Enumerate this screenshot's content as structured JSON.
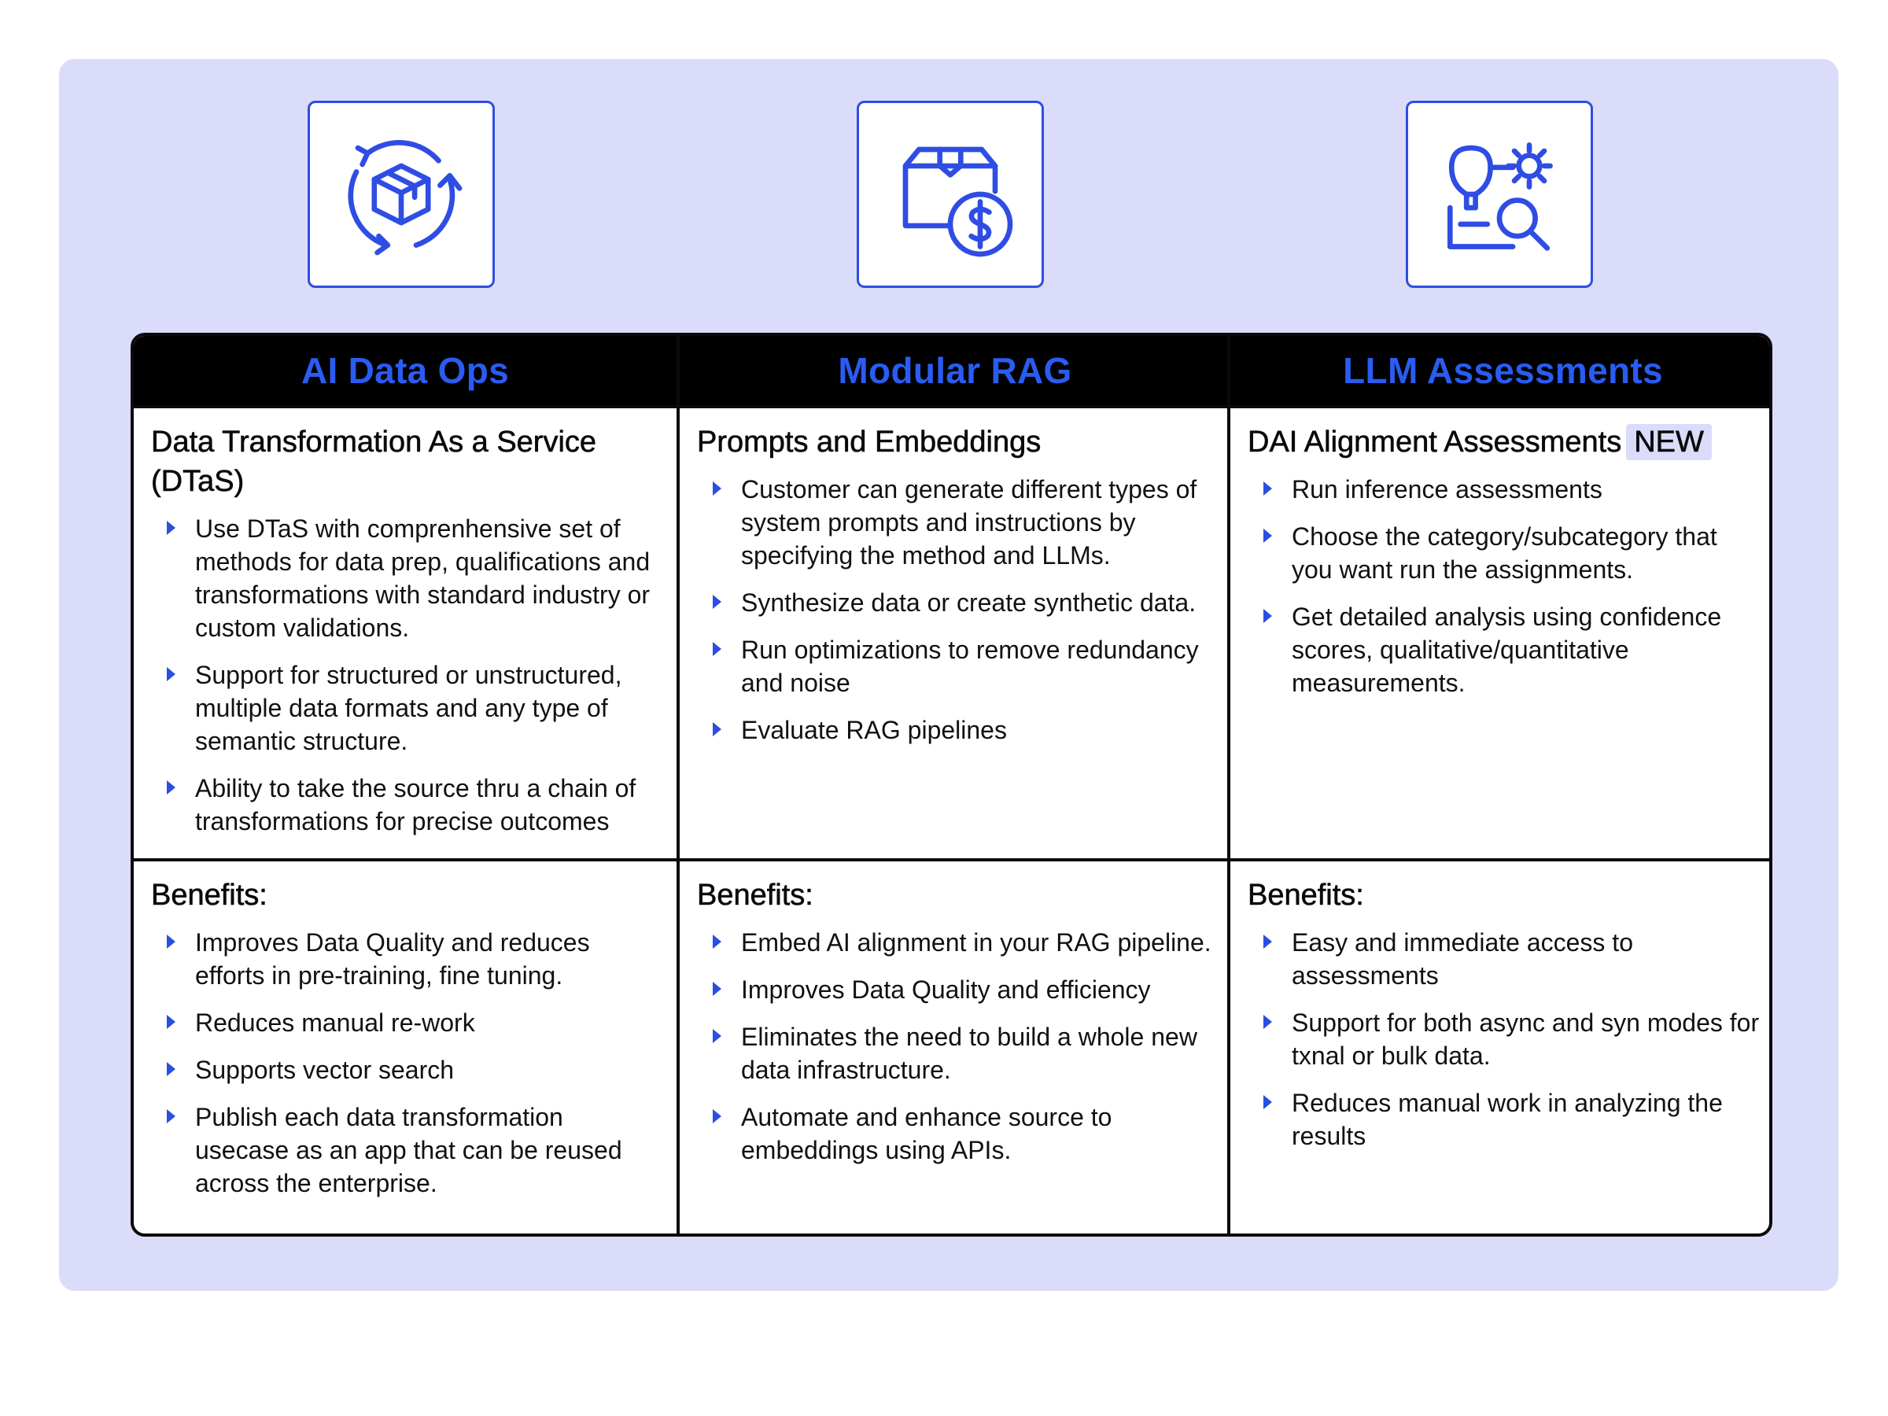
{
  "columns": [
    {
      "title": "AI Data Ops",
      "icon": "box-cycle-icon",
      "top_title": "Data Transformation As a Service (DTaS)",
      "top_badge": "",
      "top_items": [
        "Use DTaS with comprenhensive set of methods for data prep, qualifications and transformations with standard industry or custom validations.",
        "Support for structured or unstructured, multiple data formats and any type of semantic structure.",
        "Ability to take the source thru a chain of transformations for precise outcomes"
      ],
      "bottom_title": "Benefits:",
      "bottom_items": [
        "Improves Data Quality and reduces efforts in pre-training, fine tuning.",
        "Reduces manual re-work",
        "Supports vector search",
        "Publish each data transformation usecase as an app that can be reused across the enterprise."
      ]
    },
    {
      "title": "Modular RAG",
      "icon": "box-dollar-icon",
      "top_title": "Prompts and Embeddings",
      "top_badge": "",
      "top_items": [
        "Customer can generate different types of system prompts and instructions by specifying the method and LLMs.",
        "Synthesize data or create synthetic data.",
        "Run optimizations to remove redundancy and noise",
        "Evaluate RAG pipelines"
      ],
      "bottom_title": "Benefits:",
      "bottom_items": [
        "Embed AI alignment in your RAG pipeline.",
        "Improves Data Quality and efficiency",
        "Eliminates the need to build a whole new data infrastructure.",
        "Automate and enhance source to embeddings using APIs."
      ]
    },
    {
      "title": "LLM Assessments",
      "icon": "idea-gear-search-icon",
      "top_title": "DAI Alignment Assessments",
      "top_badge": "NEW",
      "top_items": [
        "Run inference assessments",
        "Choose the category/subcategory that you want run the assignments.",
        "Get detailed analysis using confidence scores, qualitative/quantitative measurements."
      ],
      "bottom_title": "Benefits:",
      "bottom_items": [
        "Easy and immediate access to assessments",
        "Support for both async and syn modes for txnal or bulk data.",
        "Reduces manual work in analyzing the results"
      ]
    }
  ],
  "colors": {
    "accent": "#2a5cf2",
    "panel": "#dadcfa",
    "border": "#0a0a0a"
  }
}
